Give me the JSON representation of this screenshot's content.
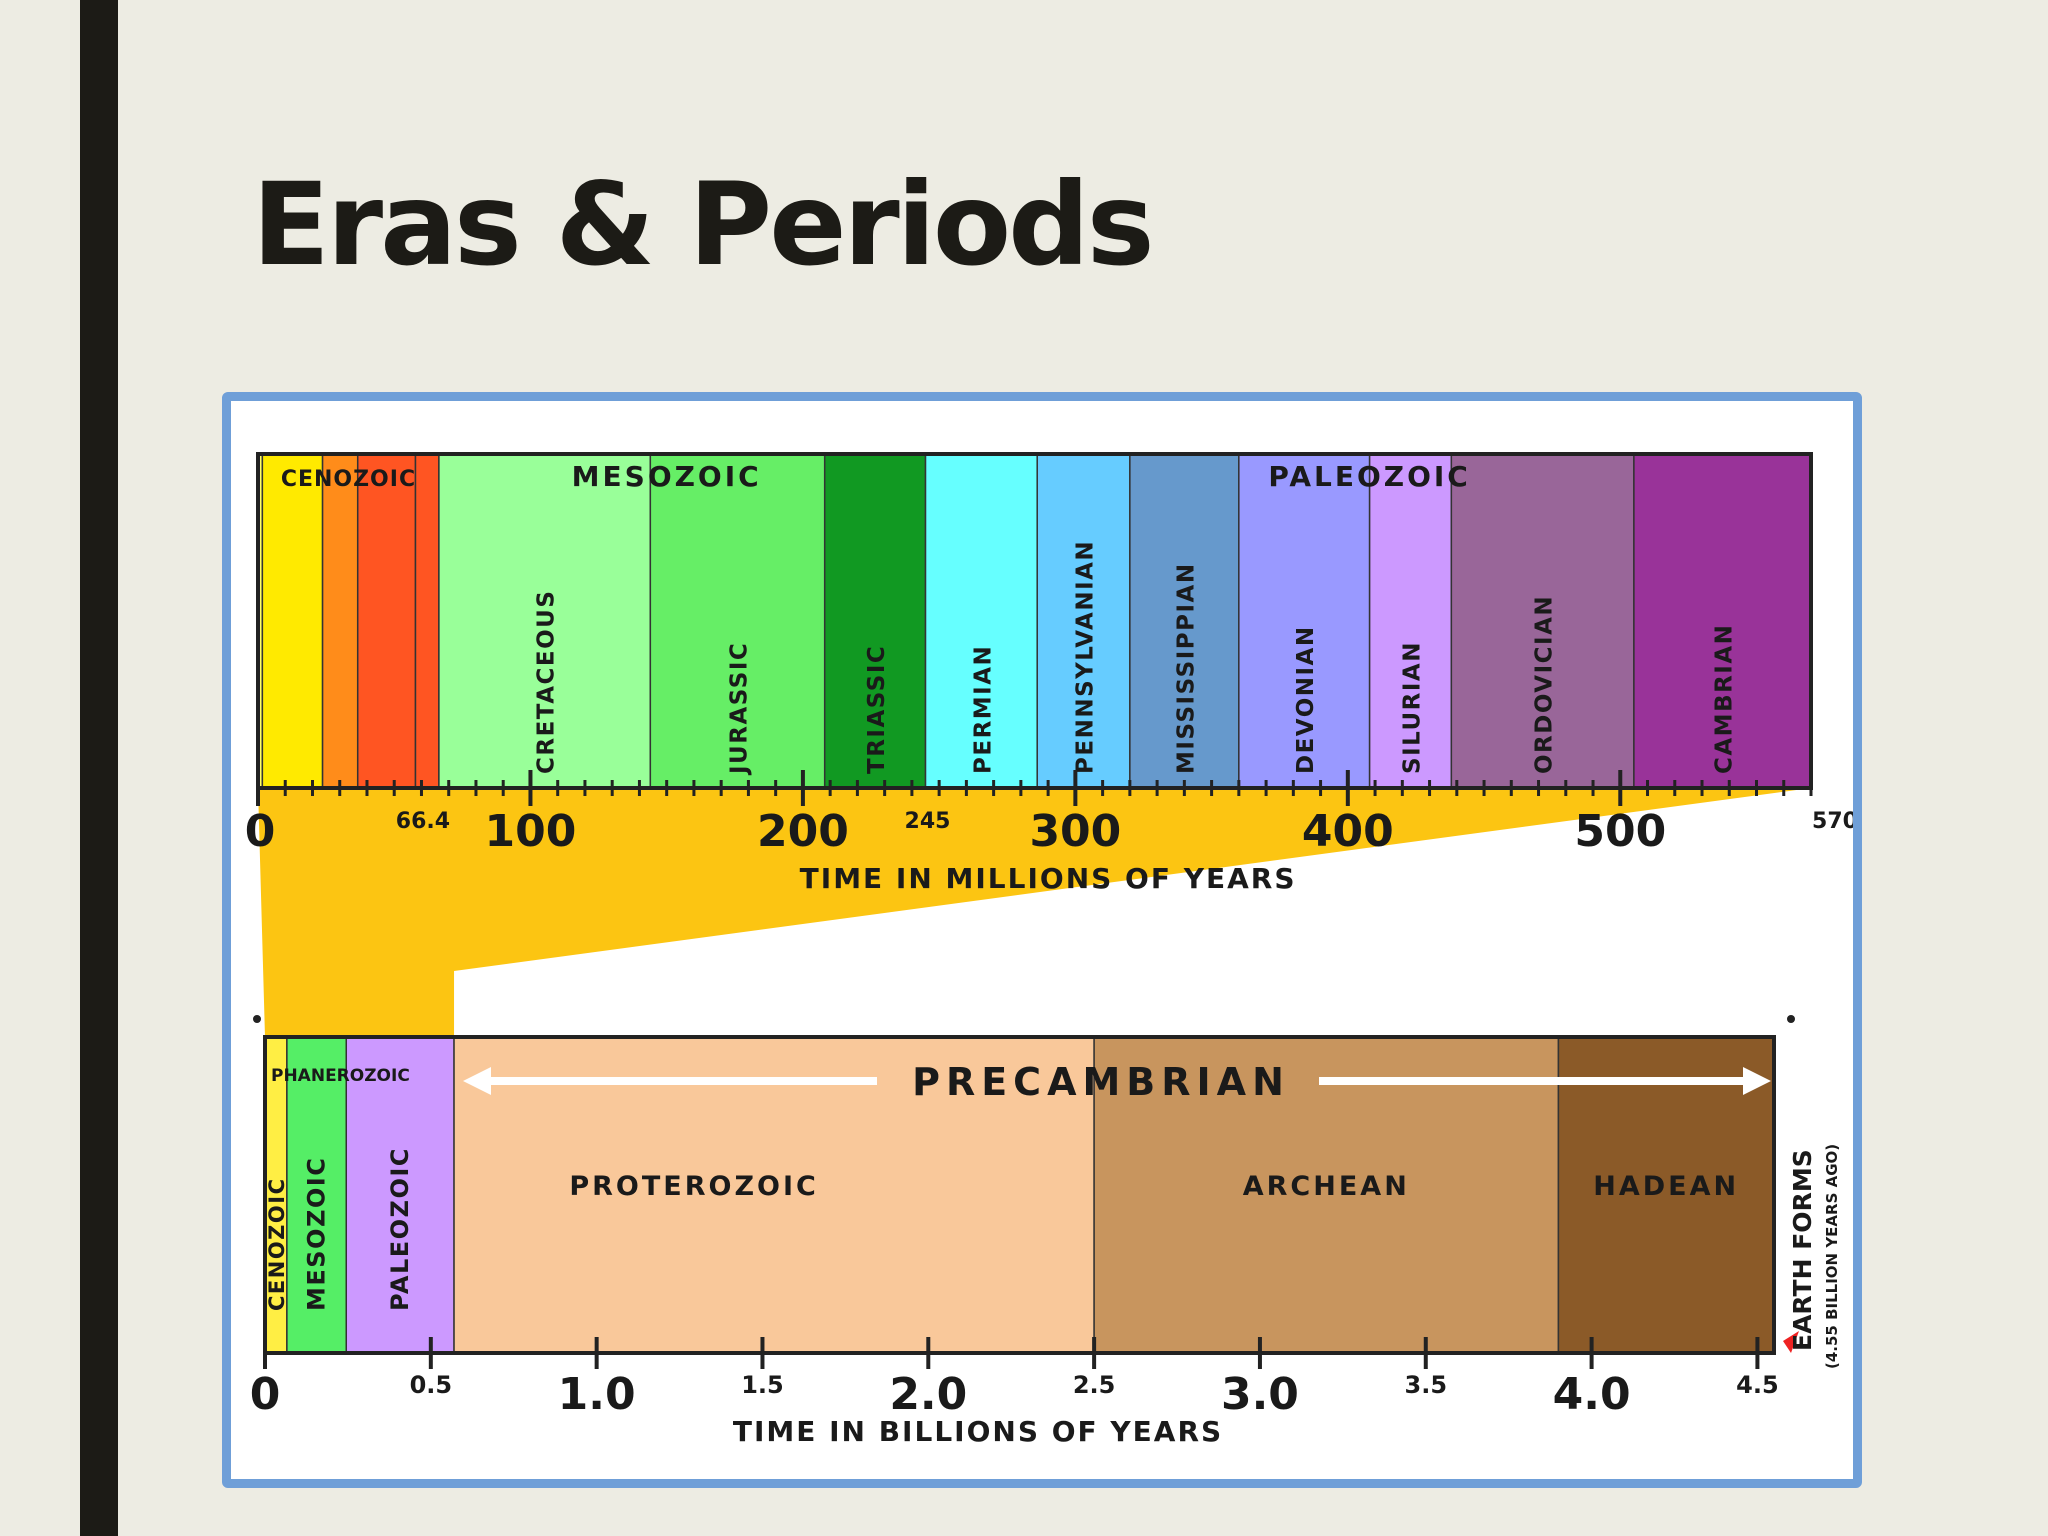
{
  "slide": {
    "title": "Eras & Periods"
  },
  "timeline": {
    "millions": {
      "axis_label": "TIME IN MILLIONS OF YEARS",
      "max": 570,
      "eras": [
        {
          "label": "CENOZOIC",
          "start": 0,
          "end": 66.4
        },
        {
          "label": "MESOZOIC",
          "start": 66.4,
          "end": 245
        },
        {
          "label": "PALEOZOIC",
          "start": 245,
          "end": 570
        }
      ],
      "periods": [
        {
          "label": "",
          "start": 0,
          "end": 1.6,
          "color": "#ffff66"
        },
        {
          "label": "",
          "start": 1.6,
          "end": 23.7,
          "color": "#ffea00"
        },
        {
          "label": "",
          "start": 23.7,
          "end": 36.6,
          "color": "#ff8c1a"
        },
        {
          "label": "",
          "start": 36.6,
          "end": 57.8,
          "color": "#ff5522"
        },
        {
          "label": "",
          "start": 57.8,
          "end": 66.4,
          "color": "#ff5522"
        },
        {
          "label": "CRETACEOUS",
          "start": 66.4,
          "end": 144,
          "color": "#99ff99"
        },
        {
          "label": "JURASSIC",
          "start": 144,
          "end": 208,
          "color": "#66ee66"
        },
        {
          "label": "TRIASSIC",
          "start": 208,
          "end": 245,
          "color": "#119922"
        },
        {
          "label": "PERMIAN",
          "start": 245,
          "end": 286,
          "color": "#66ffff"
        },
        {
          "label": "PENNSYLVANIAN",
          "start": 286,
          "end": 320,
          "color": "#66ccff"
        },
        {
          "label": "MISSISSIPPIAN",
          "start": 320,
          "end": 360,
          "color": "#6699cc"
        },
        {
          "label": "DEVONIAN",
          "start": 360,
          "end": 408,
          "color": "#9999ff"
        },
        {
          "label": "SILURIAN",
          "start": 408,
          "end": 438,
          "color": "#cc99ff"
        },
        {
          "label": "ORDOVICIAN",
          "start": 438,
          "end": 505,
          "color": "#996699"
        },
        {
          "label": "CAMBRIAN",
          "start": 505,
          "end": 570,
          "color": "#993399"
        }
      ],
      "ticks_major": [
        {
          "value": 0,
          "label": "0"
        },
        {
          "value": 100,
          "label": "100"
        },
        {
          "value": 200,
          "label": "200"
        },
        {
          "value": 300,
          "label": "300"
        },
        {
          "value": 400,
          "label": "400"
        },
        {
          "value": 500,
          "label": "500"
        }
      ],
      "ticks_minor": [
        {
          "value": 66.4,
          "label": "66.4"
        },
        {
          "value": 245,
          "label": "245"
        },
        {
          "value": 570,
          "label": "570"
        }
      ]
    },
    "billions": {
      "axis_label": "TIME IN BILLIONS OF YEARS",
      "max": 4.55,
      "supereon_label": "PHANEROZOIC",
      "precambrian_label": "PRECAMBRIAN",
      "eons": [
        {
          "label": "CENOZOIC",
          "start": 0,
          "end": 0.066,
          "color": "#ffee44",
          "vertical": true
        },
        {
          "label": "MESOZOIC",
          "start": 0.066,
          "end": 0.245,
          "color": "#55ee66",
          "vertical": true
        },
        {
          "label": "PALEOZOIC",
          "start": 0.245,
          "end": 0.57,
          "color": "#cc99ff",
          "vertical": true
        },
        {
          "label": "PROTEROZOIC",
          "start": 0.57,
          "end": 2.5,
          "color": "#f9c89a",
          "vertical": false
        },
        {
          "label": "ARCHEAN",
          "start": 2.5,
          "end": 3.9,
          "color": "#c8955e",
          "vertical": false
        },
        {
          "label": "HADEAN",
          "start": 3.9,
          "end": 4.55,
          "color": "#8b5a28",
          "vertical": false
        }
      ],
      "ticks_major": [
        {
          "value": 0,
          "label": "0"
        },
        {
          "value": 1.0,
          "label": "1.0"
        },
        {
          "value": 2.0,
          "label": "2.0"
        },
        {
          "value": 3.0,
          "label": "3.0"
        },
        {
          "value": 4.0,
          "label": "4.0"
        }
      ],
      "ticks_minor": [
        {
          "value": 0.5,
          "label": "0.5"
        },
        {
          "value": 1.5,
          "label": "1.5"
        },
        {
          "value": 2.5,
          "label": "2.5"
        },
        {
          "value": 3.5,
          "label": "3.5"
        },
        {
          "value": 4.5,
          "label": "4.5"
        }
      ],
      "earth_forms_label": "EARTH FORMS",
      "earth_forms_sub": "(4.55 BILLION YEARS AGO)"
    },
    "colors": {
      "funnel": "#fcc512",
      "arrow_marker": "#ee2222"
    }
  }
}
